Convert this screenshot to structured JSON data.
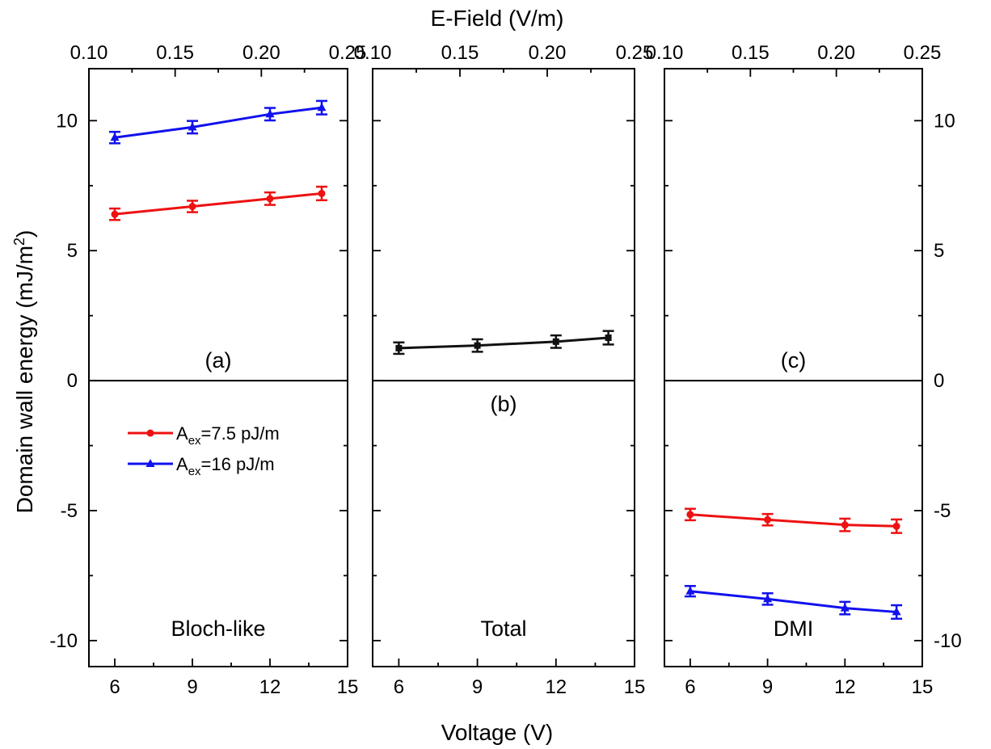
{
  "chart_data": {
    "type": "line",
    "xlabel": "Voltage (V)",
    "x2label": "E-Field (V/m)",
    "ylabel": "Domain wall energy (mJ/m",
    "ylabel_sup": "2",
    "ylabel_close": ")",
    "xlim": [
      5,
      15
    ],
    "x2lim": [
      0.1,
      0.25
    ],
    "ylim": [
      -11,
      12
    ],
    "xticks": [
      6,
      9,
      12,
      15
    ],
    "x2ticks": [
      "0.10",
      "0.15",
      "0.20",
      "0.25"
    ],
    "yticks": [
      -10,
      -5,
      0,
      5,
      10
    ],
    "colors": {
      "red": "#ee1111",
      "blue": "#1111ee",
      "black": "#111111"
    },
    "legend": {
      "placement": "left-middle of panel (a)",
      "entries": [
        {
          "prefix": "A",
          "sub": "ex",
          "suffix": "=7.5 pJ/m",
          "color": "#ee1111",
          "marker": "circle"
        },
        {
          "prefix": "A",
          "sub": "ex",
          "suffix": "=16 pJ/m",
          "color": "#1111ee",
          "marker": "triangle"
        }
      ]
    },
    "panels": [
      {
        "id": "a",
        "label": "(a)",
        "name": "Bloch-like",
        "y_tick_labels": "left",
        "series": [
          {
            "color": "#ee1111",
            "marker": "circle",
            "x": [
              6,
              9,
              12,
              14
            ],
            "y": [
              6.4,
              6.7,
              7.0,
              7.2
            ],
            "err": [
              0.22,
              0.22,
              0.24,
              0.26
            ]
          },
          {
            "color": "#1111ee",
            "marker": "triangle",
            "x": [
              6,
              9,
              12,
              14
            ],
            "y": [
              9.35,
              9.75,
              10.25,
              10.5
            ],
            "err": [
              0.22,
              0.24,
              0.24,
              0.26
            ]
          }
        ]
      },
      {
        "id": "b",
        "label": "(b)",
        "name": "Total",
        "y_tick_labels": "none",
        "series": [
          {
            "color": "#111111",
            "marker": "square",
            "x": [
              6,
              9,
              12,
              14
            ],
            "y": [
              1.25,
              1.35,
              1.5,
              1.65
            ],
            "err": [
              0.22,
              0.24,
              0.24,
              0.26
            ]
          }
        ]
      },
      {
        "id": "c",
        "label": "(c)",
        "name": "DMI",
        "y_tick_labels": "right",
        "series": [
          {
            "color": "#ee1111",
            "marker": "circle",
            "x": [
              6,
              9,
              12,
              14
            ],
            "y": [
              -5.15,
              -5.35,
              -5.55,
              -5.6
            ],
            "err": [
              0.22,
              0.22,
              0.24,
              0.26
            ]
          },
          {
            "color": "#1111ee",
            "marker": "triangle",
            "x": [
              6,
              9,
              12,
              14
            ],
            "y": [
              -8.1,
              -8.4,
              -8.75,
              -8.9
            ],
            "err": [
              0.2,
              0.22,
              0.24,
              0.26
            ]
          }
        ]
      }
    ]
  }
}
